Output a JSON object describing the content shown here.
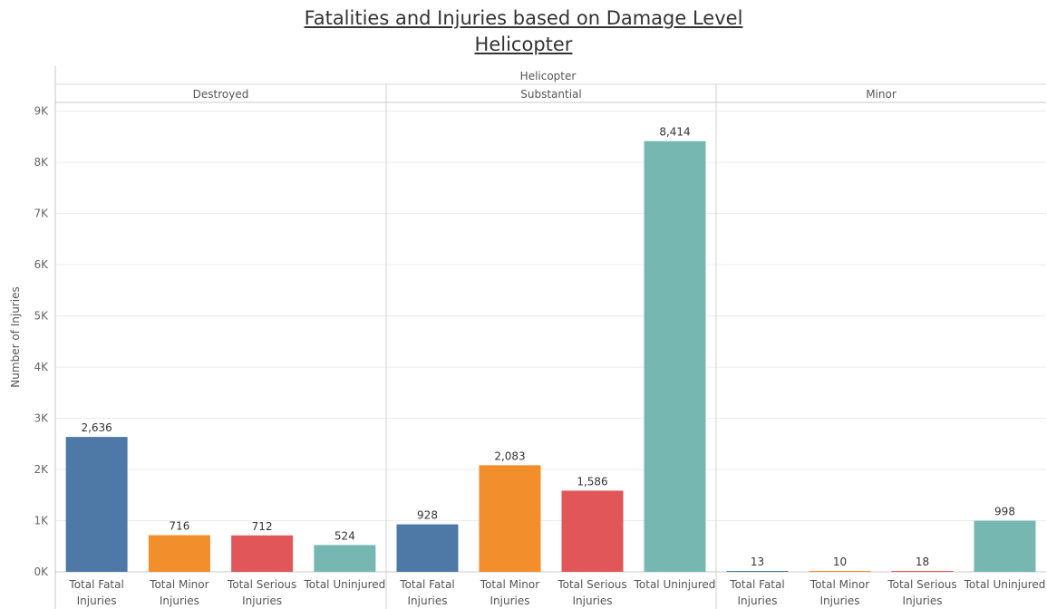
{
  "chart_data": {
    "type": "bar",
    "title": "Fatalities and Injuries based on Damage Level",
    "subtitle": "Helicopter",
    "column_header": "Helicopter",
    "ylabel": "Number of Injuries",
    "ylim": [
      0,
      9100
    ],
    "y_ticks": [
      0,
      1000,
      2000,
      3000,
      4000,
      5000,
      6000,
      7000,
      8000,
      9000
    ],
    "y_tick_labels": [
      "0K",
      "1K",
      "2K",
      "3K",
      "4K",
      "5K",
      "6K",
      "7K",
      "8K",
      "9K"
    ],
    "categories": [
      [
        "Total Fatal",
        "Injuries"
      ],
      [
        "Total Minor",
        "Injuries"
      ],
      [
        "Total Serious",
        "Injuries"
      ],
      [
        "Total Uninjured"
      ]
    ],
    "category_colors": [
      "#4e79a7",
      "#f28e2b",
      "#e15759",
      "#76b7b2"
    ],
    "panels": [
      {
        "name": "Destroyed",
        "values": [
          2636,
          716,
          712,
          524
        ],
        "labels": [
          "2,636",
          "716",
          "712",
          "524"
        ]
      },
      {
        "name": "Substantial",
        "values": [
          928,
          2083,
          1586,
          8414
        ],
        "labels": [
          "928",
          "2,083",
          "1,586",
          "8,414"
        ]
      },
      {
        "name": "Minor",
        "values": [
          13,
          10,
          18,
          998
        ],
        "labels": [
          "13",
          "10",
          "18",
          "998"
        ]
      }
    ]
  }
}
